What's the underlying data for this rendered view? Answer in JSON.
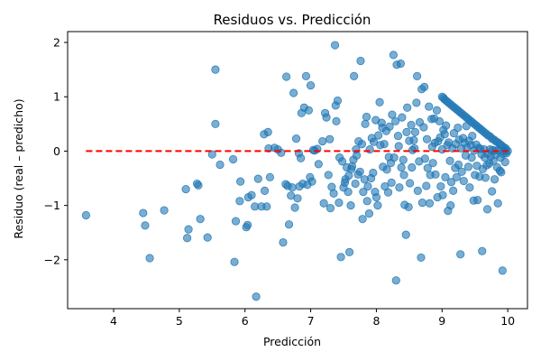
{
  "chart_data": {
    "type": "scatter",
    "title": "Residuos vs. Predicción",
    "xlabel": "Predicción",
    "ylabel": "Residuo (real – predicho)",
    "xlim": [
      3.3,
      10.3
    ],
    "ylim": [
      -2.9,
      2.2
    ],
    "xticks": [
      4,
      5,
      6,
      7,
      8,
      9,
      10
    ],
    "yticks": [
      -2,
      -1,
      0,
      1,
      2
    ],
    "xtick_labels": [
      "4",
      "5",
      "6",
      "7",
      "8",
      "9",
      "10"
    ],
    "ytick_labels": [
      "−2",
      "−1",
      "0",
      "1",
      "2"
    ],
    "grid": false,
    "legend": "none",
    "marker_color": "#1f77b4",
    "marker_alpha": 0.6,
    "reference_line": {
      "y": 0,
      "color": "#ff0000",
      "style": "dashed"
    },
    "points": [
      [
        3.58,
        -1.18
      ],
      [
        4.45,
        -1.14
      ],
      [
        4.48,
        -1.37
      ],
      [
        4.55,
        -1.97
      ],
      [
        4.77,
        -1.09
      ],
      [
        5.1,
        -0.7
      ],
      [
        5.12,
        -1.6
      ],
      [
        5.14,
        -1.44
      ],
      [
        5.27,
        -0.6
      ],
      [
        5.29,
        -0.63
      ],
      [
        5.32,
        -1.25
      ],
      [
        5.43,
        -1.59
      ],
      [
        5.5,
        -0.06
      ],
      [
        5.55,
        1.5
      ],
      [
        5.55,
        0.5
      ],
      [
        5.62,
        -0.25
      ],
      [
        5.82,
        -0.15
      ],
      [
        5.84,
        -2.04
      ],
      [
        5.86,
        -1.29
      ],
      [
        5.92,
        -0.92
      ],
      [
        5.93,
        -0.56
      ],
      [
        6.02,
        -1.4
      ],
      [
        6.04,
        -1.36
      ],
      [
        6.05,
        -0.85
      ],
      [
        6.1,
        -0.81
      ],
      [
        6.15,
        -1.02
      ],
      [
        6.17,
        -2.68
      ],
      [
        6.2,
        -0.51
      ],
      [
        6.25,
        -1.02
      ],
      [
        6.29,
        0.31
      ],
      [
        6.3,
        -0.73
      ],
      [
        6.33,
        -1.02
      ],
      [
        6.35,
        0.35
      ],
      [
        6.36,
        0.05
      ],
      [
        6.38,
        -0.48
      ],
      [
        6.45,
        0.06
      ],
      [
        6.5,
        0.03
      ],
      [
        6.55,
        -0.03
      ],
      [
        6.58,
        -1.68
      ],
      [
        6.62,
        -0.61
      ],
      [
        6.63,
        1.37
      ],
      [
        6.65,
        -0.64
      ],
      [
        6.67,
        -1.35
      ],
      [
        6.7,
        -0.82
      ],
      [
        6.72,
        -0.67
      ],
      [
        6.74,
        1.07
      ],
      [
        6.76,
        -1.04
      ],
      [
        6.78,
        0.23
      ],
      [
        6.8,
        -0.87
      ],
      [
        6.82,
        -0.04
      ],
      [
        6.83,
        -0.65
      ],
      [
        6.85,
        -0.13
      ],
      [
        6.86,
        0.7
      ],
      [
        6.88,
        -0.6
      ],
      [
        6.9,
        0.8
      ],
      [
        6.93,
        1.38
      ],
      [
        6.95,
        -0.62
      ],
      [
        6.97,
        0.75
      ],
      [
        6.99,
        -0.48
      ],
      [
        7.0,
        1.21
      ],
      [
        7.02,
        -0.56
      ],
      [
        7.04,
        0.02
      ],
      [
        7.06,
        0.01
      ],
      [
        7.1,
        0.04
      ],
      [
        7.12,
        -0.24
      ],
      [
        7.18,
        0.18
      ],
      [
        7.2,
        -0.96
      ],
      [
        7.22,
        0.7
      ],
      [
        7.24,
        0.62
      ],
      [
        7.27,
        -0.44
      ],
      [
        7.29,
        0.22
      ],
      [
        7.3,
        -1.05
      ],
      [
        7.32,
        -0.66
      ],
      [
        7.35,
        -0.78
      ],
      [
        7.37,
        1.95
      ],
      [
        7.38,
        0.84
      ],
      [
        7.39,
        0.55
      ],
      [
        7.41,
        0.93
      ],
      [
        7.43,
        -0.95
      ],
      [
        7.44,
        -0.12
      ],
      [
        7.46,
        -1.95
      ],
      [
        7.48,
        -0.19
      ],
      [
        7.5,
        -0.67
      ],
      [
        7.52,
        -0.58
      ],
      [
        7.53,
        -0.52
      ],
      [
        7.55,
        -0.3
      ],
      [
        7.57,
        -0.75
      ],
      [
        7.58,
        -0.45
      ],
      [
        7.59,
        -1.86
      ],
      [
        7.61,
        -1.0
      ],
      [
        7.62,
        -0.33
      ],
      [
        7.63,
        -0.28
      ],
      [
        7.65,
        -0.16
      ],
      [
        7.66,
        1.38
      ],
      [
        7.68,
        -0.6
      ],
      [
        7.69,
        0.03
      ],
      [
        7.7,
        -0.08
      ],
      [
        7.72,
        -0.43
      ],
      [
        7.73,
        0.18
      ],
      [
        7.75,
        -0.38
      ],
      [
        7.76,
        1.66
      ],
      [
        7.78,
        0.13
      ],
      [
        7.79,
        -1.25
      ],
      [
        7.8,
        -0.75
      ],
      [
        7.82,
        -0.52
      ],
      [
        7.83,
        0.5
      ],
      [
        7.85,
        0.63
      ],
      [
        7.86,
        -0.92
      ],
      [
        7.87,
        -0.65
      ],
      [
        7.89,
        -1.15
      ],
      [
        7.9,
        0.03
      ],
      [
        7.92,
        -0.5
      ],
      [
        7.93,
        0.24
      ],
      [
        7.95,
        -0.4
      ],
      [
        7.96,
        0.17
      ],
      [
        7.98,
        -0.75
      ],
      [
        7.99,
        0.57
      ],
      [
        8.0,
        -0.85
      ],
      [
        8.02,
        -1.0
      ],
      [
        8.03,
        0.29
      ],
      [
        8.05,
        0.9
      ],
      [
        8.06,
        0.11
      ],
      [
        8.08,
        0.52
      ],
      [
        8.09,
        0.43
      ],
      [
        8.1,
        -0.29
      ],
      [
        8.12,
        0.13
      ],
      [
        8.13,
        -0.65
      ],
      [
        8.15,
        0.37
      ],
      [
        8.16,
        -0.34
      ],
      [
        8.18,
        -0.76
      ],
      [
        8.19,
        -0.11
      ],
      [
        8.2,
        0.45
      ],
      [
        8.22,
        -0.22
      ],
      [
        8.23,
        -0.58
      ],
      [
        8.24,
        0.67
      ],
      [
        8.26,
        1.77
      ],
      [
        8.27,
        -0.12
      ],
      [
        8.29,
        0.55
      ],
      [
        8.3,
        -2.38
      ],
      [
        8.31,
        1.59
      ],
      [
        8.33,
        0.28
      ],
      [
        8.34,
        0.09
      ],
      [
        8.35,
        -0.67
      ],
      [
        8.37,
        1.61
      ],
      [
        8.38,
        -0.3
      ],
      [
        8.39,
        0.62
      ],
      [
        8.41,
        -0.16
      ],
      [
        8.42,
        -0.44
      ],
      [
        8.43,
        -0.99
      ],
      [
        8.45,
        -1.54
      ],
      [
        8.46,
        0.35
      ],
      [
        8.47,
        0.8
      ],
      [
        8.49,
        -1.03
      ],
      [
        8.5,
        0.19
      ],
      [
        8.51,
        -0.59
      ],
      [
        8.53,
        0.48
      ],
      [
        8.54,
        -0.3
      ],
      [
        8.55,
        0.02
      ],
      [
        8.57,
        0.2
      ],
      [
        8.58,
        0.05
      ],
      [
        8.59,
        0.35
      ],
      [
        8.61,
        0.89
      ],
      [
        8.62,
        1.38
      ],
      [
        8.63,
        -0.73
      ],
      [
        8.65,
        -0.19
      ],
      [
        8.66,
        0.53
      ],
      [
        8.68,
        -1.96
      ],
      [
        8.69,
        1.14
      ],
      [
        8.7,
        -0.95
      ],
      [
        8.72,
        0.44
      ],
      [
        8.73,
        1.18
      ],
      [
        8.74,
        -0.14
      ],
      [
        8.76,
        -0.64
      ],
      [
        8.77,
        0.22
      ],
      [
        8.78,
        -0.31
      ],
      [
        8.8,
        0.82
      ],
      [
        8.81,
        -0.96
      ],
      [
        8.82,
        -0.44
      ],
      [
        8.84,
        0.59
      ],
      [
        8.85,
        0.08
      ],
      [
        8.86,
        -0.22
      ],
      [
        8.88,
        0.6
      ],
      [
        8.89,
        0.15
      ],
      [
        8.9,
        -0.43
      ],
      [
        8.92,
        0.75
      ],
      [
        8.93,
        -0.85
      ],
      [
        8.94,
        0.18
      ],
      [
        8.96,
        0.55
      ],
      [
        8.97,
        0.25
      ],
      [
        8.98,
        -0.65
      ],
      [
        9.0,
        0.03
      ],
      [
        9.01,
        -0.81
      ],
      [
        9.02,
        0.39
      ],
      [
        9.04,
        0.31
      ],
      [
        9.05,
        -0.48
      ],
      [
        9.06,
        0.47
      ],
      [
        9.08,
        0.11
      ],
      [
        9.09,
        -1.1
      ],
      [
        9.1,
        0.16
      ],
      [
        9.12,
        -0.18
      ],
      [
        9.13,
        -1.0
      ],
      [
        9.14,
        -0.57
      ],
      [
        9.16,
        0.05
      ],
      [
        9.17,
        -0.73
      ],
      [
        9.18,
        0.33
      ],
      [
        9.2,
        -0.31
      ],
      [
        9.21,
        0.13
      ],
      [
        9.22,
        -0.48
      ],
      [
        9.24,
        0.43
      ],
      [
        9.25,
        -0.25
      ],
      [
        9.26,
        0.21
      ],
      [
        9.28,
        -1.9
      ],
      [
        9.29,
        0.05
      ],
      [
        9.3,
        -0.38
      ],
      [
        9.32,
        0.24
      ],
      [
        9.33,
        -0.55
      ],
      [
        9.34,
        0.15
      ],
      [
        9.36,
        -0.08
      ],
      [
        9.37,
        0.46
      ],
      [
        9.38,
        0.06
      ],
      [
        9.4,
        -0.29
      ],
      [
        9.41,
        0.19
      ],
      [
        9.42,
        -0.67
      ],
      [
        9.44,
        0.11
      ],
      [
        9.45,
        -0.12
      ],
      [
        9.46,
        0.28
      ],
      [
        9.48,
        -0.91
      ],
      [
        9.49,
        0.01
      ],
      [
        9.5,
        -0.44
      ],
      [
        9.52,
        0.12
      ],
      [
        9.53,
        -0.27
      ],
      [
        9.54,
        -0.9
      ],
      [
        9.56,
        0.06
      ],
      [
        9.57,
        -0.47
      ],
      [
        9.58,
        0.04
      ],
      [
        9.6,
        -0.06
      ],
      [
        9.61,
        -1.84
      ],
      [
        9.62,
        -0.33
      ],
      [
        9.64,
        0.03
      ],
      [
        9.65,
        -0.12
      ],
      [
        9.66,
        -0.49
      ],
      [
        9.68,
        -0.26
      ],
      [
        9.69,
        -1.07
      ],
      [
        9.7,
        -0.05
      ],
      [
        9.72,
        -0.23
      ],
      [
        9.73,
        0.03
      ],
      [
        9.74,
        -0.1
      ],
      [
        9.76,
        -0.74
      ],
      [
        9.77,
        0.02
      ],
      [
        9.78,
        -0.18
      ],
      [
        9.8,
        -0.52
      ],
      [
        9.81,
        0.01
      ],
      [
        9.82,
        -0.06
      ],
      [
        9.84,
        -0.3
      ],
      [
        9.85,
        -0.96
      ],
      [
        9.86,
        0.02
      ],
      [
        9.88,
        -0.36
      ],
      [
        9.89,
        -0.12
      ],
      [
        9.9,
        -0.39
      ],
      [
        9.92,
        -2.2
      ],
      [
        9.93,
        -0.05
      ],
      [
        9.94,
        0.0
      ],
      [
        9.96,
        -0.2
      ],
      [
        9.97,
        0.01
      ],
      [
        9.98,
        -0.04
      ],
      [
        10.0,
        0.0
      ],
      [
        9.94,
        0.07
      ],
      [
        9.88,
        0.13
      ],
      [
        9.82,
        0.18
      ],
      [
        9.76,
        0.23
      ],
      [
        9.7,
        0.29
      ],
      [
        9.64,
        0.35
      ],
      [
        9.58,
        0.41
      ],
      [
        9.52,
        0.47
      ],
      [
        9.46,
        0.53
      ],
      [
        9.4,
        0.59
      ],
      [
        9.34,
        0.65
      ],
      [
        9.28,
        0.71
      ],
      [
        9.22,
        0.77
      ],
      [
        9.16,
        0.83
      ],
      [
        9.1,
        0.89
      ],
      [
        9.04,
        0.95
      ],
      [
        9.0,
        1.0
      ],
      [
        9.97,
        0.05
      ],
      [
        9.91,
        0.1
      ],
      [
        9.85,
        0.16
      ],
      [
        9.79,
        0.21
      ],
      [
        9.73,
        0.27
      ],
      [
        9.67,
        0.32
      ],
      [
        9.61,
        0.38
      ],
      [
        9.55,
        0.44
      ],
      [
        9.49,
        0.5
      ],
      [
        9.43,
        0.56
      ],
      [
        9.37,
        0.62
      ],
      [
        9.31,
        0.68
      ],
      [
        9.25,
        0.74
      ],
      [
        9.19,
        0.8
      ],
      [
        9.13,
        0.86
      ],
      [
        9.07,
        0.92
      ],
      [
        9.02,
        0.98
      ]
    ]
  }
}
